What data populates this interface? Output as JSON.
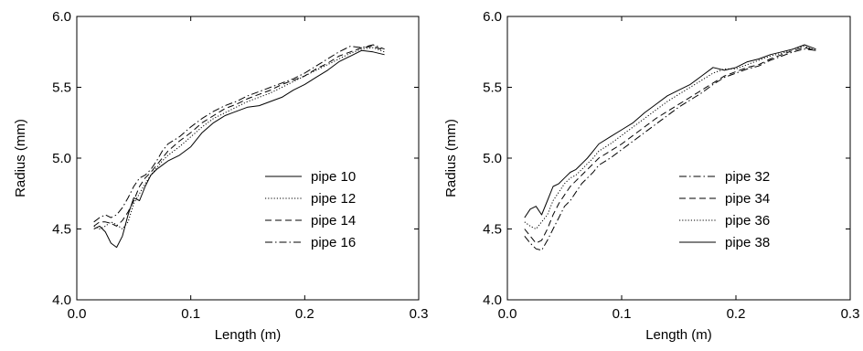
{
  "chart_data": [
    {
      "type": "line",
      "xlabel": "Length (m)",
      "ylabel": "Radius (mm)",
      "xlim": [
        0.0,
        0.3
      ],
      "ylim": [
        4.0,
        6.0
      ],
      "xticks": [
        "0.0",
        "0.1",
        "0.2",
        "0.3"
      ],
      "yticks": [
        "4.0",
        "4.5",
        "5.0",
        "5.5",
        "6.0"
      ],
      "grid": false,
      "legend_position": "lower-right",
      "series": [
        {
          "name": "pipe 10",
          "dash": "solid",
          "x": [
            0.015,
            0.02,
            0.025,
            0.03,
            0.035,
            0.04,
            0.045,
            0.05,
            0.055,
            0.06,
            0.065,
            0.07,
            0.075,
            0.08,
            0.09,
            0.1,
            0.11,
            0.12,
            0.13,
            0.14,
            0.15,
            0.16,
            0.17,
            0.18,
            0.19,
            0.2,
            0.21,
            0.22,
            0.23,
            0.24,
            0.25,
            0.26,
            0.27
          ],
          "y": [
            4.5,
            4.52,
            4.48,
            4.4,
            4.37,
            4.45,
            4.6,
            4.72,
            4.7,
            4.8,
            4.88,
            4.92,
            4.95,
            4.98,
            5.02,
            5.08,
            5.18,
            5.25,
            5.3,
            5.33,
            5.36,
            5.37,
            5.4,
            5.43,
            5.48,
            5.52,
            5.57,
            5.62,
            5.68,
            5.72,
            5.76,
            5.75,
            5.73
          ]
        },
        {
          "name": "pipe 12",
          "dash": "dotted",
          "x": [
            0.015,
            0.02,
            0.025,
            0.03,
            0.035,
            0.04,
            0.045,
            0.05,
            0.055,
            0.06,
            0.065,
            0.07,
            0.075,
            0.08,
            0.09,
            0.1,
            0.11,
            0.12,
            0.13,
            0.14,
            0.15,
            0.16,
            0.17,
            0.18,
            0.19,
            0.2,
            0.21,
            0.22,
            0.23,
            0.24,
            0.25,
            0.26,
            0.27
          ],
          "y": [
            4.52,
            4.5,
            4.52,
            4.55,
            4.53,
            4.5,
            4.55,
            4.68,
            4.75,
            4.82,
            4.88,
            4.93,
            4.98,
            5.02,
            5.08,
            5.15,
            5.22,
            5.28,
            5.32,
            5.36,
            5.4,
            5.43,
            5.46,
            5.5,
            5.54,
            5.58,
            5.62,
            5.66,
            5.7,
            5.74,
            5.77,
            5.78,
            5.75
          ]
        },
        {
          "name": "pipe 14",
          "dash": "dashed",
          "x": [
            0.015,
            0.02,
            0.025,
            0.03,
            0.035,
            0.04,
            0.045,
            0.05,
            0.055,
            0.06,
            0.065,
            0.07,
            0.075,
            0.08,
            0.09,
            0.1,
            0.11,
            0.12,
            0.13,
            0.14,
            0.15,
            0.16,
            0.17,
            0.18,
            0.19,
            0.2,
            0.21,
            0.22,
            0.23,
            0.24,
            0.25,
            0.26,
            0.27
          ],
          "y": [
            4.52,
            4.55,
            4.55,
            4.54,
            4.52,
            4.56,
            4.62,
            4.7,
            4.8,
            4.86,
            4.9,
            4.95,
            5.0,
            5.05,
            5.12,
            5.18,
            5.25,
            5.3,
            5.35,
            5.38,
            5.42,
            5.45,
            5.48,
            5.52,
            5.55,
            5.58,
            5.63,
            5.67,
            5.72,
            5.75,
            5.78,
            5.79,
            5.76
          ]
        },
        {
          "name": "pipe 16",
          "dash": "dashdot",
          "x": [
            0.015,
            0.02,
            0.025,
            0.03,
            0.035,
            0.04,
            0.045,
            0.05,
            0.055,
            0.06,
            0.065,
            0.07,
            0.075,
            0.08,
            0.09,
            0.1,
            0.11,
            0.12,
            0.13,
            0.14,
            0.15,
            0.16,
            0.17,
            0.18,
            0.19,
            0.2,
            0.21,
            0.22,
            0.23,
            0.24,
            0.25,
            0.26,
            0.27
          ],
          "y": [
            4.55,
            4.58,
            4.6,
            4.58,
            4.6,
            4.65,
            4.72,
            4.8,
            4.86,
            4.88,
            4.92,
            4.98,
            5.05,
            5.1,
            5.15,
            5.22,
            5.28,
            5.33,
            5.37,
            5.4,
            5.44,
            5.47,
            5.5,
            5.53,
            5.56,
            5.6,
            5.65,
            5.7,
            5.75,
            5.79,
            5.78,
            5.8,
            5.77
          ]
        }
      ]
    },
    {
      "type": "line",
      "xlabel": "Length (m)",
      "ylabel": "Radius (mm)",
      "xlim": [
        0.0,
        0.3
      ],
      "ylim": [
        4.0,
        6.0
      ],
      "xticks": [
        "0.0",
        "0.1",
        "0.2",
        "0.3"
      ],
      "yticks": [
        "4.0",
        "4.5",
        "5.0",
        "5.5",
        "6.0"
      ],
      "grid": false,
      "legend_position": "lower-right",
      "series": [
        {
          "name": "pipe 32",
          "dash": "dashdot",
          "x": [
            0.015,
            0.02,
            0.025,
            0.03,
            0.035,
            0.04,
            0.045,
            0.05,
            0.055,
            0.06,
            0.065,
            0.07,
            0.075,
            0.08,
            0.09,
            0.1,
            0.11,
            0.12,
            0.13,
            0.14,
            0.15,
            0.16,
            0.17,
            0.18,
            0.19,
            0.2,
            0.21,
            0.22,
            0.23,
            0.24,
            0.25,
            0.26,
            0.27
          ],
          "y": [
            4.45,
            4.4,
            4.36,
            4.35,
            4.42,
            4.5,
            4.58,
            4.66,
            4.7,
            4.76,
            4.82,
            4.86,
            4.9,
            4.95,
            5.0,
            5.06,
            5.12,
            5.18,
            5.24,
            5.3,
            5.36,
            5.41,
            5.46,
            5.52,
            5.57,
            5.6,
            5.63,
            5.65,
            5.69,
            5.72,
            5.75,
            5.77,
            5.76
          ]
        },
        {
          "name": "pipe 34",
          "dash": "dashed",
          "x": [
            0.015,
            0.02,
            0.025,
            0.03,
            0.035,
            0.04,
            0.045,
            0.05,
            0.055,
            0.06,
            0.065,
            0.07,
            0.075,
            0.08,
            0.09,
            0.1,
            0.11,
            0.12,
            0.13,
            0.14,
            0.15,
            0.16,
            0.17,
            0.18,
            0.19,
            0.2,
            0.21,
            0.22,
            0.23,
            0.24,
            0.25,
            0.26,
            0.27
          ],
          "y": [
            4.5,
            4.45,
            4.4,
            4.42,
            4.5,
            4.6,
            4.68,
            4.74,
            4.8,
            4.84,
            4.88,
            4.92,
            4.96,
            5.0,
            5.05,
            5.1,
            5.16,
            5.22,
            5.28,
            5.33,
            5.38,
            5.43,
            5.48,
            5.53,
            5.58,
            5.61,
            5.64,
            5.66,
            5.7,
            5.73,
            5.76,
            5.78,
            5.76
          ]
        },
        {
          "name": "pipe 36",
          "dash": "dotted",
          "x": [
            0.015,
            0.02,
            0.025,
            0.03,
            0.035,
            0.04,
            0.045,
            0.05,
            0.055,
            0.06,
            0.065,
            0.07,
            0.075,
            0.08,
            0.09,
            0.1,
            0.11,
            0.12,
            0.13,
            0.14,
            0.15,
            0.16,
            0.17,
            0.18,
            0.19,
            0.2,
            0.21,
            0.22,
            0.23,
            0.24,
            0.25,
            0.26,
            0.27
          ],
          "y": [
            4.55,
            4.52,
            4.5,
            4.55,
            4.6,
            4.7,
            4.76,
            4.82,
            4.86,
            4.88,
            4.92,
            4.96,
            5.0,
            5.05,
            5.1,
            5.16,
            5.22,
            5.28,
            5.34,
            5.4,
            5.45,
            5.5,
            5.55,
            5.6,
            5.63,
            5.63,
            5.66,
            5.69,
            5.72,
            5.74,
            5.77,
            5.79,
            5.76
          ]
        },
        {
          "name": "pipe 38",
          "dash": "solid",
          "x": [
            0.015,
            0.02,
            0.025,
            0.03,
            0.035,
            0.04,
            0.045,
            0.05,
            0.055,
            0.06,
            0.065,
            0.07,
            0.075,
            0.08,
            0.09,
            0.1,
            0.11,
            0.12,
            0.13,
            0.14,
            0.15,
            0.16,
            0.17,
            0.18,
            0.19,
            0.2,
            0.21,
            0.22,
            0.23,
            0.24,
            0.25,
            0.26,
            0.27
          ],
          "y": [
            4.58,
            4.64,
            4.66,
            4.6,
            4.7,
            4.8,
            4.82,
            4.86,
            4.9,
            4.92,
            4.96,
            5.0,
            5.05,
            5.1,
            5.15,
            5.2,
            5.25,
            5.32,
            5.38,
            5.44,
            5.48,
            5.52,
            5.58,
            5.64,
            5.62,
            5.64,
            5.68,
            5.7,
            5.73,
            5.75,
            5.77,
            5.8,
            5.77
          ]
        }
      ]
    }
  ]
}
